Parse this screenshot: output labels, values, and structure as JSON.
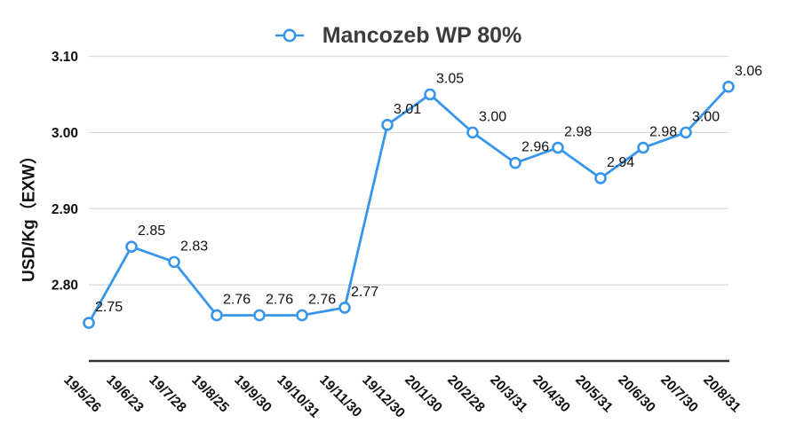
{
  "chart_data": {
    "type": "line",
    "title": "Mancozeb WP 80%",
    "ylabel": "USD/Kg（EXW）",
    "xlabel": "",
    "legend_position": "top",
    "grid": true,
    "categories": [
      "19/5/26",
      "19/6/23",
      "19/7/28",
      "19/8/25",
      "19/9/30",
      "19/10/31",
      "19/11/30",
      "19/12/30",
      "20/1/30",
      "20/2/28",
      "20/3/31",
      "20/4/30",
      "20/5/31",
      "20/6/30",
      "20/7/30",
      "20/8/31"
    ],
    "series": [
      {
        "name": "Mancozeb WP 80%",
        "values": [
          2.75,
          2.85,
          2.83,
          2.76,
          2.76,
          2.76,
          2.77,
          3.01,
          3.05,
          3.0,
          2.96,
          2.98,
          2.94,
          2.98,
          3.0,
          3.06
        ]
      }
    ],
    "ylim": [
      2.7,
      3.1
    ],
    "yticks": [
      2.8,
      2.9,
      3.0,
      3.1
    ],
    "colors": {
      "line": "#3796EC",
      "marker_fill": "#ffffff",
      "grid": "#d9d9d9",
      "axis": "#333333",
      "title_text": "#3c3c3c",
      "label_text": "#111111"
    }
  }
}
